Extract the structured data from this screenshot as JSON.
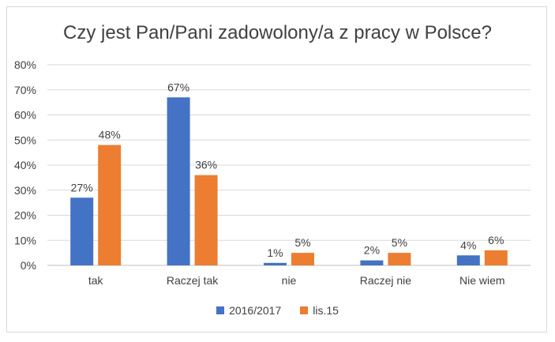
{
  "chart_data": {
    "type": "bar",
    "title": "Czy jest Pan/Pani zadowolony/a z pracy w Polsce?",
    "categories": [
      "tak",
      "Raczej tak",
      "nie",
      "Raczej nie",
      "Nie wiem"
    ],
    "series": [
      {
        "name": "2016/2017",
        "values": [
          27,
          67,
          1,
          2,
          4
        ],
        "color": "#4472c4"
      },
      {
        "name": "lis.15",
        "values": [
          48,
          36,
          5,
          5,
          6
        ],
        "color": "#ed7d31"
      }
    ],
    "ylim": [
      0,
      80
    ],
    "yticks": [
      "0%",
      "10%",
      "20%",
      "30%",
      "40%",
      "50%",
      "60%",
      "70%",
      "80%"
    ],
    "value_suffix": "%",
    "grid": true,
    "legend": "bottom"
  }
}
